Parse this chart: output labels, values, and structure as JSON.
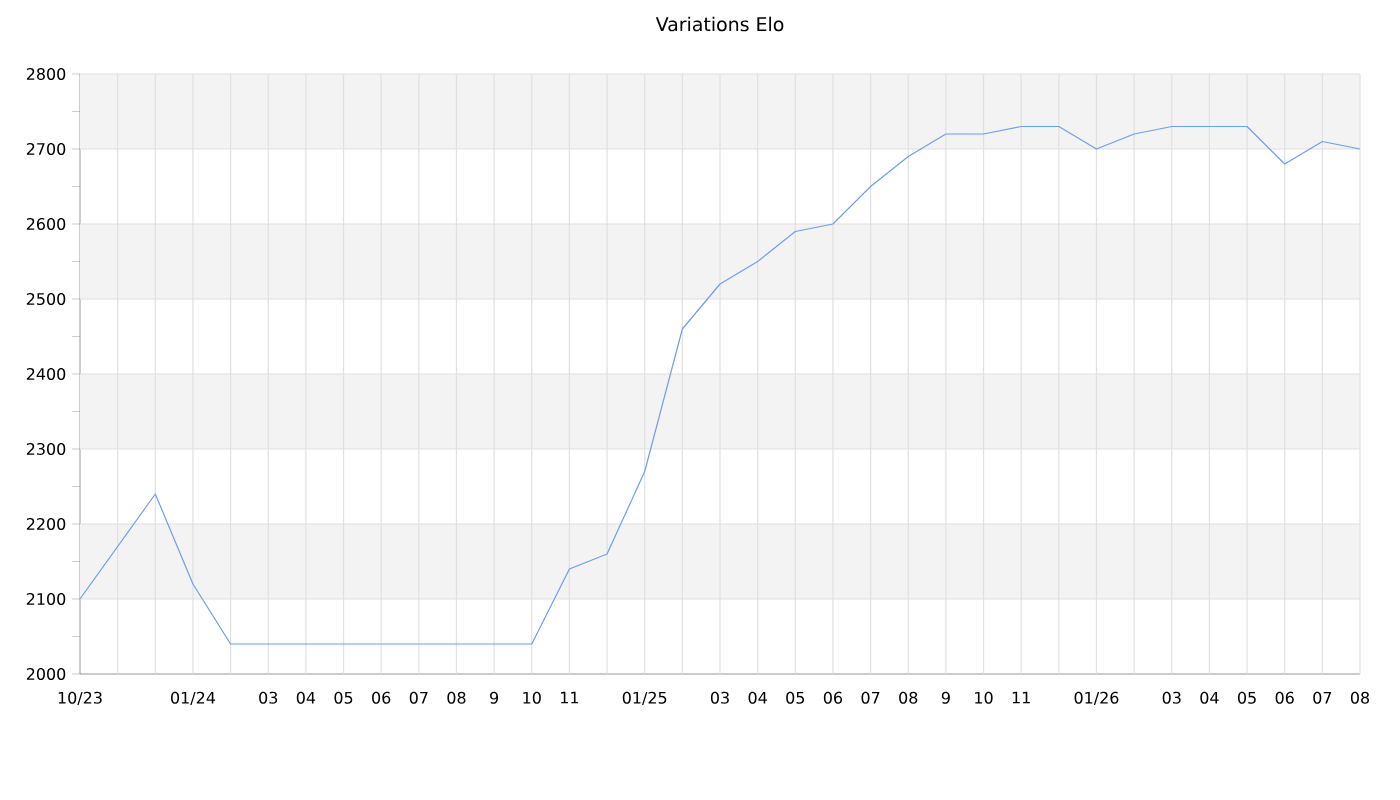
{
  "chart_data": {
    "type": "line",
    "title": "Variations Elo",
    "categories": [
      "10/23",
      null,
      null,
      "01/24",
      null,
      "03",
      "04",
      "05",
      "06",
      "07",
      "08",
      "9",
      "10",
      "11",
      null,
      "01/25",
      null,
      "03",
      "04",
      "05",
      "06",
      "07",
      "08",
      "9",
      "10",
      "11",
      null,
      "01/26",
      null,
      "03",
      "04",
      "05",
      "06",
      "07",
      "08"
    ],
    "series": [
      {
        "color": "#6d9eeb",
        "values": [
          2100,
          2170,
          2240,
          2120,
          2040,
          2040,
          2040,
          2040,
          2040,
          2040,
          2040,
          2040,
          2040,
          2140,
          2160,
          2270,
          2460,
          2520,
          2550,
          2590,
          2600,
          2650,
          2690,
          2720,
          2720,
          2730,
          2730,
          2700,
          2720,
          2730,
          2730,
          2730,
          2680,
          2710,
          2700
        ]
      }
    ],
    "ylim": [
      2000,
      2800
    ],
    "yticks": [
      2000,
      2100,
      2200,
      2300,
      2400,
      2500,
      2600,
      2700,
      2800
    ],
    "bands": [
      {
        "axis": "y",
        "from": 2100,
        "to": 2200,
        "color": "#f3f3f3"
      },
      {
        "axis": "y",
        "from": 2300,
        "to": 2400,
        "color": "#f3f3f3"
      },
      {
        "axis": "y",
        "from": 2500,
        "to": 2600,
        "color": "#f3f3f3"
      },
      {
        "axis": "y",
        "from": 2700,
        "to": 2800,
        "color": "#f3f3f3"
      }
    ],
    "grid": true,
    "marker": "none",
    "line_style": "solid"
  }
}
